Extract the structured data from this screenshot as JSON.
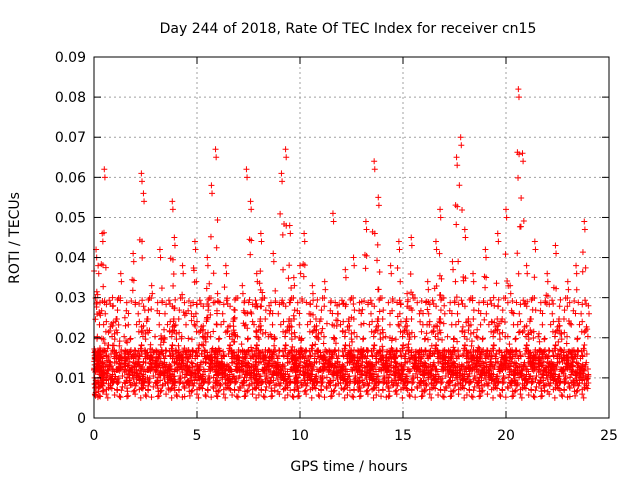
{
  "chart_data": {
    "type": "scatter",
    "title": "Day 244 of 2018, Rate Of TEC Index for receiver cn15",
    "xlabel": "GPS time / hours",
    "ylabel": "ROTI / TECUs",
    "xlim": [
      0,
      25
    ],
    "ylim": [
      0,
      0.09
    ],
    "x_ticks": [
      "0",
      "5",
      "10",
      "15",
      "20",
      "25"
    ],
    "y_ticks": [
      "0",
      "0.01",
      "0.02",
      "0.03",
      "0.04",
      "0.05",
      "0.06",
      "0.07",
      "0.08",
      "0.09"
    ],
    "grid": true,
    "marker": "+",
    "series": [
      {
        "color": "#ff0000",
        "x": [
          0.0,
          0.1,
          0.2,
          0.3,
          0.4,
          0.5,
          0.7,
          0.9,
          1.1,
          1.3,
          1.5,
          1.7,
          1.9,
          2.1,
          2.3,
          2.4,
          2.6,
          2.8,
          3.0,
          3.2,
          3.4,
          3.6,
          3.8,
          3.9,
          4.1,
          4.3,
          4.5,
          4.7,
          4.9,
          5.1,
          5.3,
          5.5,
          5.7,
          5.9,
          6.0,
          6.2,
          6.4,
          6.6,
          6.8,
          7.0,
          7.2,
          7.4,
          7.6,
          7.8,
          7.9,
          8.1,
          8.3,
          8.5,
          8.7,
          8.9,
          9.1,
          9.3,
          9.5,
          9.7,
          9.8,
          10.0,
          10.2,
          10.4,
          10.6,
          10.8,
          11.0,
          11.2,
          11.4,
          11.6,
          11.8,
          12.0,
          12.2,
          12.4,
          12.6,
          12.8,
          13.0,
          13.2,
          13.4,
          13.6,
          13.8,
          14.0,
          14.2,
          14.4,
          14.6,
          14.8,
          15.0,
          15.2,
          15.4,
          15.6,
          15.8,
          16.0,
          16.2,
          16.4,
          16.6,
          16.8,
          17.0,
          17.2,
          17.4,
          17.6,
          17.8,
          18.0,
          18.2,
          18.4,
          18.6,
          18.8,
          19.0,
          19.2,
          19.4,
          19.6,
          19.8,
          20.0,
          20.2,
          20.4,
          20.6,
          20.8,
          21.0,
          21.2,
          21.4,
          21.6,
          21.8,
          22.0,
          22.2,
          22.4,
          22.6,
          22.8,
          23.0,
          23.2,
          23.4,
          23.6,
          23.8,
          24.0
        ],
        "y": [
          0.012,
          0.042,
          0.038,
          0.01,
          0.046,
          0.062,
          0.015,
          0.03,
          0.009,
          0.036,
          0.025,
          0.012,
          0.041,
          0.016,
          0.061,
          0.056,
          0.01,
          0.033,
          0.014,
          0.042,
          0.022,
          0.009,
          0.054,
          0.045,
          0.018,
          0.038,
          0.011,
          0.028,
          0.044,
          0.012,
          0.022,
          0.04,
          0.058,
          0.067,
          0.031,
          0.014,
          0.038,
          0.009,
          0.027,
          0.012,
          0.033,
          0.062,
          0.054,
          0.016,
          0.036,
          0.046,
          0.011,
          0.028,
          0.041,
          0.013,
          0.061,
          0.067,
          0.048,
          0.035,
          0.012,
          0.038,
          0.046,
          0.015,
          0.033,
          0.022,
          0.01,
          0.034,
          0.014,
          0.051,
          0.028,
          0.012,
          0.037,
          0.018,
          0.04,
          0.009,
          0.029,
          0.049,
          0.014,
          0.064,
          0.055,
          0.022,
          0.012,
          0.038,
          0.016,
          0.044,
          0.011,
          0.031,
          0.045,
          0.013,
          0.026,
          0.009,
          0.034,
          0.018,
          0.044,
          0.052,
          0.028,
          0.011,
          0.039,
          0.065,
          0.07,
          0.047,
          0.013,
          0.036,
          0.022,
          0.01,
          0.042,
          0.016,
          0.03,
          0.046,
          0.014,
          0.052,
          0.033,
          0.011,
          0.082,
          0.066,
          0.038,
          0.015,
          0.044,
          0.021,
          0.01,
          0.036,
          0.014,
          0.043,
          0.023,
          0.011,
          0.034,
          0.016,
          0.038,
          0.012,
          0.049,
          0.028
        ],
        "density": [
          30,
          32,
          30,
          30,
          28,
          26,
          28,
          30,
          30,
          28,
          26,
          28,
          30,
          28,
          26,
          26,
          30,
          28,
          28,
          30,
          30,
          30,
          28,
          28,
          30,
          30,
          30,
          30,
          30,
          30,
          30,
          32,
          30,
          30,
          30,
          30,
          30,
          32,
          32,
          32,
          30,
          30,
          30,
          30,
          30,
          32,
          32,
          30,
          30,
          30,
          30,
          30,
          32,
          32,
          30,
          30,
          30,
          30,
          30,
          28,
          28,
          28,
          28,
          28,
          28,
          30,
          30,
          30,
          32,
          32,
          30,
          30,
          32,
          32,
          32,
          30,
          30,
          30,
          32,
          32,
          30,
          30,
          28,
          28,
          28,
          30,
          30,
          32,
          32,
          30,
          30,
          30,
          32,
          32,
          30,
          30,
          30,
          32,
          32,
          30,
          28,
          28,
          28,
          28,
          28,
          30,
          30,
          30,
          30,
          30,
          30,
          30,
          30,
          28,
          28,
          28,
          30,
          30,
          30,
          30,
          30,
          30,
          30,
          30,
          30,
          28
        ]
      }
    ]
  }
}
